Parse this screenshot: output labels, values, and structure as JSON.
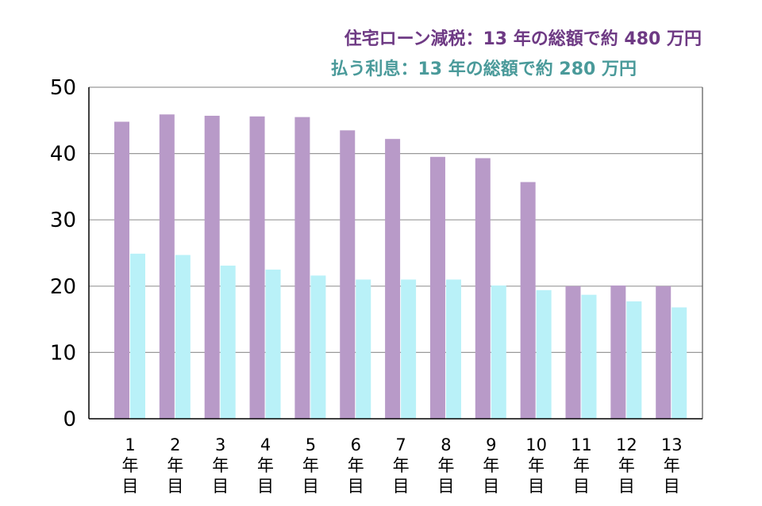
{
  "colors": {
    "reduction": "#b89ac8",
    "interest": "#b9f1f8",
    "reduction_text": "#6e3a84",
    "interest_text": "#4a9a9a",
    "grid": "#999999",
    "axis": "#000000"
  },
  "chart_data": {
    "type": "bar",
    "categories": [
      [
        "1",
        "年",
        "目"
      ],
      [
        "2",
        "年",
        "目"
      ],
      [
        "3",
        "年",
        "目"
      ],
      [
        "4",
        "年",
        "目"
      ],
      [
        "5",
        "年",
        "目"
      ],
      [
        "6",
        "年",
        "目"
      ],
      [
        "7",
        "年",
        "目"
      ],
      [
        "8",
        "年",
        "目"
      ],
      [
        "9",
        "年",
        "目"
      ],
      [
        "10",
        "年",
        "目"
      ],
      [
        "11",
        "年",
        "目"
      ],
      [
        "12",
        "年",
        "目"
      ],
      [
        "13",
        "年",
        "目"
      ]
    ],
    "series": [
      {
        "name": "住宅ローン減税：13 年の総額で約 480 万円",
        "values": [
          44.8,
          45.9,
          45.7,
          45.6,
          45.5,
          43.5,
          42.2,
          39.5,
          39.3,
          35.7,
          20.0,
          20.1,
          20.0
        ]
      },
      {
        "name": "払う利息：13 年の総額で約 280 万円",
        "values": [
          24.9,
          24.7,
          23.1,
          22.5,
          21.6,
          21.0,
          21.0,
          21.0,
          20.1,
          19.4,
          18.7,
          17.7,
          16.8
        ]
      }
    ],
    "ylim": [
      0,
      50
    ],
    "yticks": [
      "0",
      "10",
      "20",
      "30",
      "40",
      "50"
    ],
    "grid": true,
    "legend_position": "top-right"
  }
}
